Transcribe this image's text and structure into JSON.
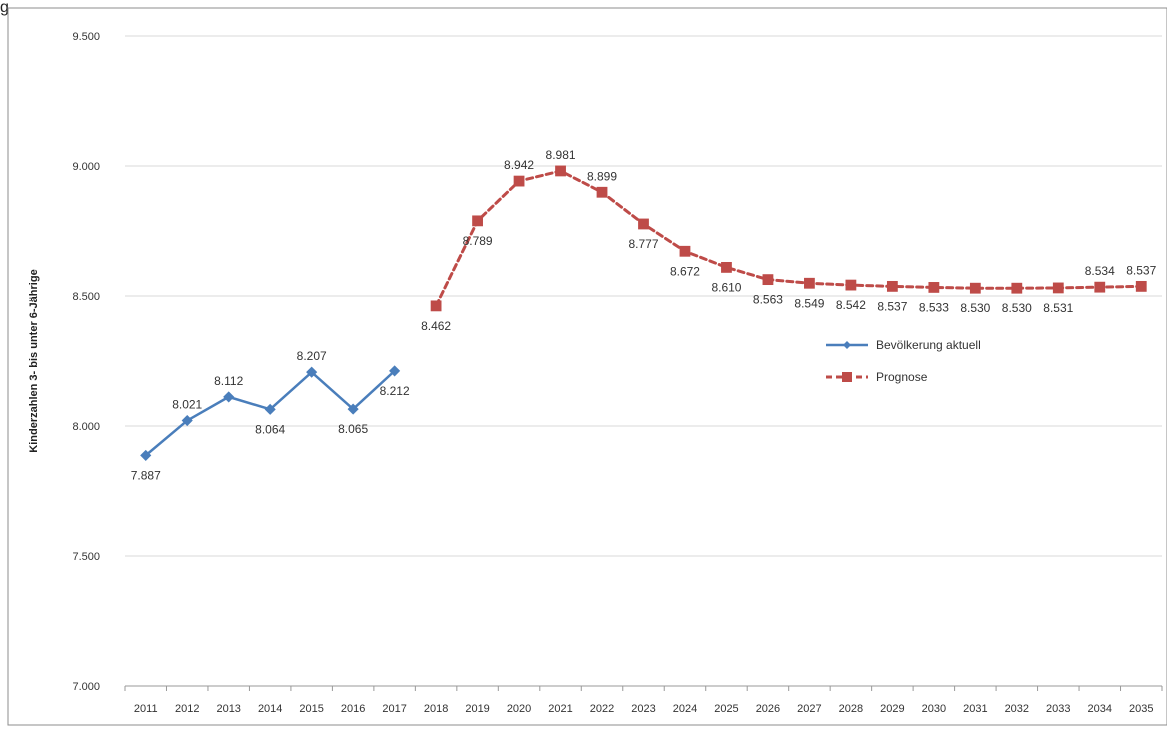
{
  "page": {
    "title_fragment": "g"
  },
  "chart_data": {
    "type": "line",
    "title": "",
    "xlabel": "",
    "ylabel": "Kinderzahlen 3- bis unter 6-Jährige",
    "ylim": [
      7000,
      9500
    ],
    "yticks": [
      7000,
      7500,
      8000,
      8500,
      9000,
      9500
    ],
    "ytick_labels": [
      "7.000",
      "7.500",
      "8.000",
      "8.500",
      "9.000",
      "9.500"
    ],
    "grid": "horizontal",
    "legend_position": "right",
    "categories": [
      "2011",
      "2012",
      "2013",
      "2014",
      "2015",
      "2016",
      "2017",
      "2018",
      "2019",
      "2020",
      "2021",
      "2022",
      "2023",
      "2024",
      "2025",
      "2026",
      "2027",
      "2028",
      "2029",
      "2030",
      "2031",
      "2032",
      "2033",
      "2034",
      "2035"
    ],
    "series": [
      {
        "name": "Bevölkerung aktuell",
        "color": "#4A7EBB",
        "marker": "diamond",
        "line_style": "solid",
        "x": [
          "2011",
          "2012",
          "2013",
          "2014",
          "2015",
          "2016",
          "2017"
        ],
        "values": [
          7887,
          8021,
          8112,
          8064,
          8207,
          8065,
          8212
        ],
        "labels": [
          "7.887",
          "8.021",
          "8.112",
          "8.064",
          "8.207",
          "8.065",
          "8.212"
        ]
      },
      {
        "name": "Prognose",
        "color": "#BE4B48",
        "marker": "square",
        "line_style": "dashed",
        "x": [
          "2018",
          "2019",
          "2020",
          "2021",
          "2022",
          "2023",
          "2024",
          "2025",
          "2026",
          "2027",
          "2028",
          "2029",
          "2030",
          "2031",
          "2032",
          "2033",
          "2034",
          "2035"
        ],
        "values": [
          8462,
          8789,
          8942,
          8981,
          8899,
          8777,
          8672,
          8610,
          8563,
          8549,
          8542,
          8537,
          8533,
          8530,
          8530,
          8531,
          8534,
          8537
        ],
        "labels": [
          "8.462",
          "8.789",
          "8.942",
          "8.981",
          "8.899",
          "8.777",
          "8.672",
          "8.610",
          "8.563",
          "8.549",
          "8.542",
          "8.537",
          "8.533",
          "8.530",
          "8.530",
          "8.531",
          "8.534",
          "8.537"
        ]
      }
    ]
  }
}
